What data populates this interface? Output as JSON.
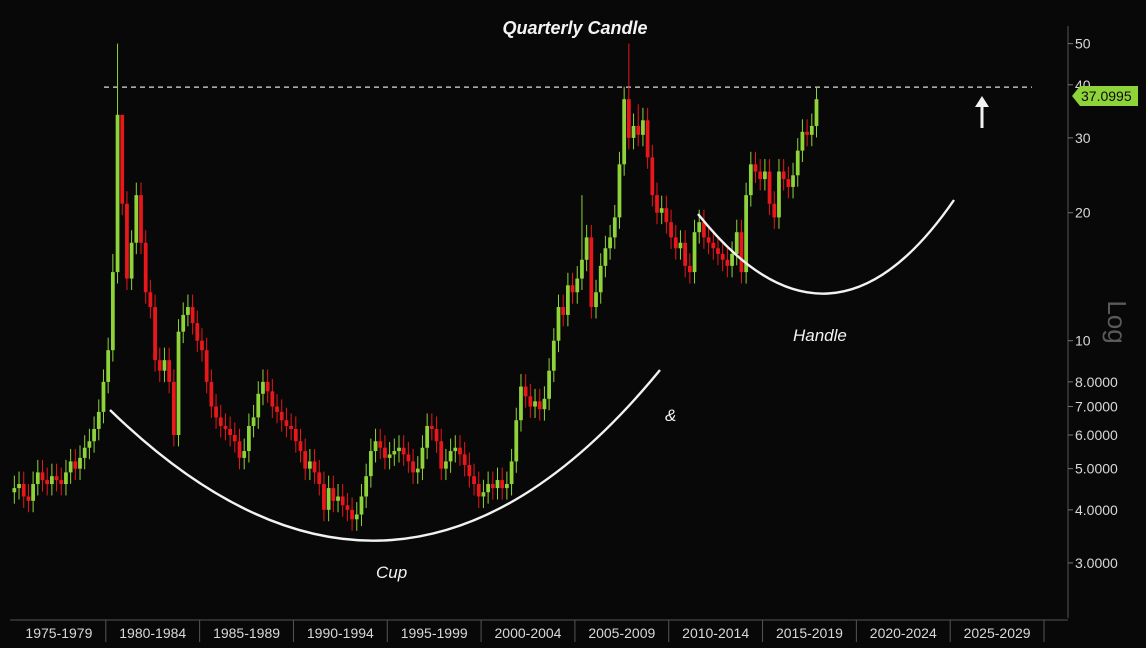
{
  "chart_data": {
    "type": "candlestick",
    "title": "Quarterly Candle",
    "y_scale": "log",
    "y_scale_label": "Log",
    "ylim": [
      2.3,
      55
    ],
    "y_ticks": [
      {
        "value": 50,
        "label": "50"
      },
      {
        "value": 40,
        "label": "40"
      },
      {
        "value": 30,
        "label": "30"
      },
      {
        "value": 20,
        "label": "20"
      },
      {
        "value": 10,
        "label": "10"
      },
      {
        "value": 8,
        "label": "8.0000"
      },
      {
        "value": 7,
        "label": "7.0000"
      },
      {
        "value": 6,
        "label": "6.0000"
      },
      {
        "value": 5,
        "label": "5.0000"
      },
      {
        "value": 4,
        "label": "4.0000"
      },
      {
        "value": 3,
        "label": "3.0000"
      }
    ],
    "x_periods": [
      "1975-1979",
      "1980-1984",
      "1985-1989",
      "1990-1994",
      "1995-1999",
      "2000-2004",
      "2005-2009",
      "2010-2014",
      "2015-2019",
      "2020-2024",
      "2025-2029"
    ],
    "x_start_year": 1975,
    "x_end_year": 2030,
    "last_price": "37.0995",
    "resistance_level": 39.5,
    "annotations": {
      "cup": "Cup",
      "amp": "&",
      "handle": "Handle"
    },
    "quarterly_closes": [
      4.5,
      4.6,
      4.3,
      4.2,
      4.6,
      4.9,
      4.7,
      4.6,
      4.8,
      4.7,
      4.6,
      4.9,
      5.2,
      5.0,
      5.3,
      5.6,
      5.8,
      6.2,
      6.8,
      8.0,
      9.5,
      14.5,
      34.0,
      21.0,
      14.0,
      17.0,
      22.0,
      17.0,
      13.0,
      12.0,
      9.0,
      8.5,
      9.0,
      8.0,
      6.0,
      10.5,
      11.5,
      12.0,
      11.0,
      10.0,
      9.5,
      8.0,
      7.0,
      6.6,
      6.3,
      6.2,
      6.0,
      5.8,
      5.3,
      5.5,
      6.3,
      6.6,
      7.5,
      8.0,
      7.6,
      7.0,
      6.8,
      6.5,
      6.3,
      6.2,
      5.8,
      5.5,
      5.0,
      5.2,
      4.9,
      4.6,
      4.0,
      4.5,
      4.2,
      4.3,
      4.1,
      4.0,
      3.8,
      3.9,
      4.3,
      4.8,
      5.5,
      5.8,
      5.6,
      5.3,
      5.4,
      5.5,
      5.6,
      5.4,
      5.2,
      4.9,
      5.0,
      5.6,
      6.3,
      6.2,
      5.8,
      5.0,
      5.2,
      5.5,
      5.6,
      5.4,
      5.1,
      4.8,
      4.6,
      4.3,
      4.4,
      4.6,
      4.5,
      4.7,
      4.5,
      4.6,
      5.2,
      6.5,
      7.8,
      7.4,
      7.0,
      7.2,
      6.9,
      7.3,
      8.5,
      10.0,
      12.0,
      11.5,
      13.5,
      13.0,
      14.0,
      15.5,
      17.5,
      12.0,
      13.0,
      15.0,
      16.5,
      17.5,
      19.5,
      26.0,
      37.0,
      30.0,
      32.0,
      30.5,
      33.0,
      27.0,
      22.0,
      20.0,
      20.5,
      19.0,
      17.5,
      16.5,
      17.0,
      15.0,
      14.5,
      18.0,
      19.0,
      17.5,
      17.0,
      16.5,
      16.0,
      15.5,
      15.0,
      16.0,
      18.0,
      14.5,
      22.0,
      26.0,
      25.0,
      24.0,
      25.0,
      21.0,
      19.5,
      25.0,
      24.0,
      23.0,
      24.5,
      28.0,
      31.0,
      30.5,
      32.0,
      37.0
    ],
    "quarterly_highs": {
      "21": 16.0,
      "22": 50.0,
      "23": 24.0,
      "121": 22.0,
      "131": 50.0,
      "133": 36.0
    }
  },
  "colors": {
    "up": "#8fd33a",
    "down": "#e8171b",
    "price_tag": "#8fd33a",
    "curve": "#f2f2f2"
  }
}
